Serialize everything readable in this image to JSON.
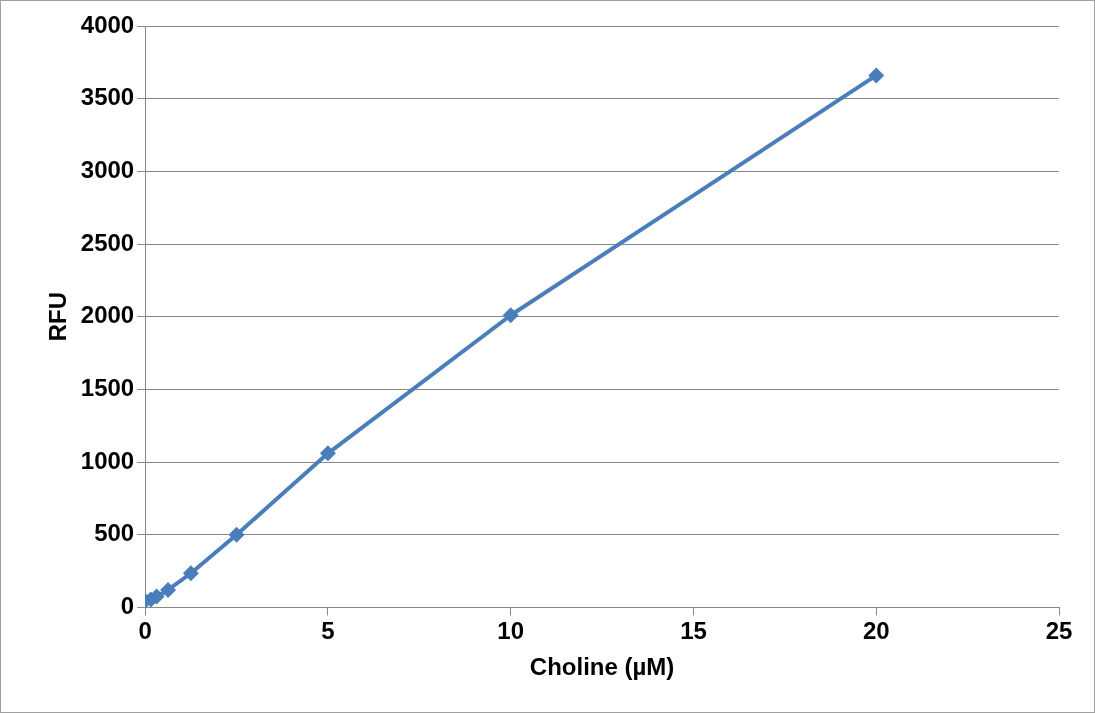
{
  "chart_data": {
    "type": "line",
    "xlabel": "Choline (µM)",
    "ylabel": "RFU",
    "x": [
      0,
      0.156,
      0.3125,
      0.625,
      1.25,
      2.5,
      5,
      10,
      20
    ],
    "series": [
      {
        "color": "#4a7ebb",
        "values": [
          45,
          55,
          75,
          120,
          235,
          500,
          1060,
          2010,
          3660
        ]
      }
    ],
    "xlim": [
      0,
      25
    ],
    "xticks": [
      0,
      5,
      10,
      15,
      20,
      25
    ],
    "ylim": [
      0,
      4000
    ],
    "yticks": [
      0,
      500,
      1000,
      1500,
      2000,
      2500,
      3000,
      3500,
      4000
    ],
    "grid": "y",
    "marker": "diamond",
    "line_style": "solid",
    "legend": false
  }
}
